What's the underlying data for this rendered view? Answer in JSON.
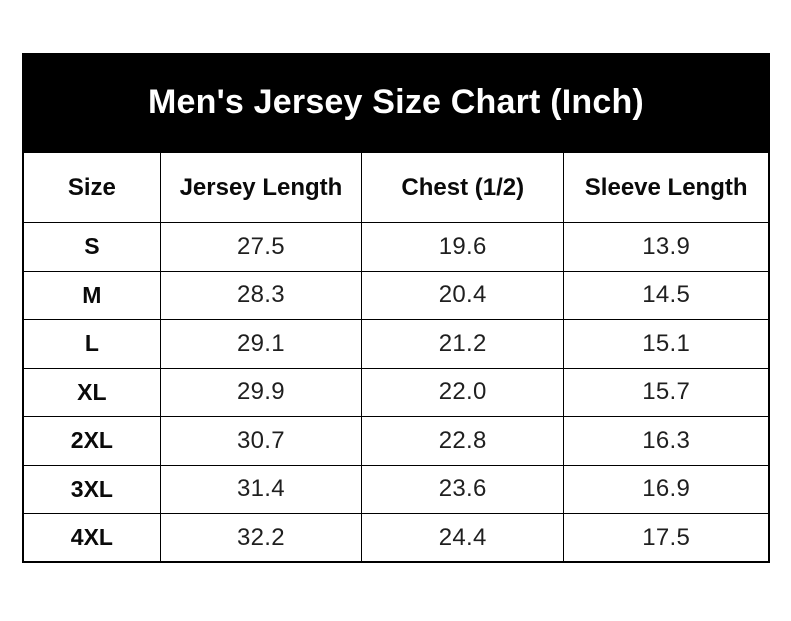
{
  "title": "Men's Jersey Size Chart (Inch)",
  "colors": {
    "banner_bg": "#000000",
    "banner_text": "#ffffff",
    "border": "#000000",
    "cell_bg": "#ffffff",
    "cell_text": "#1f1f1f"
  },
  "chart_data": {
    "type": "table",
    "title": "Men's Jersey Size Chart (Inch)",
    "columns": [
      "Size",
      "Jersey Length",
      "Chest (1/2)",
      "Sleeve Length"
    ],
    "rows": [
      [
        "S",
        "27.5",
        "19.6",
        "13.9"
      ],
      [
        "M",
        "28.3",
        "20.4",
        "14.5"
      ],
      [
        "L",
        "29.1",
        "21.2",
        "15.1"
      ],
      [
        "XL",
        "29.9",
        "22.0",
        "15.7"
      ],
      [
        "2XL",
        "30.7",
        "22.8",
        "16.3"
      ],
      [
        "3XL",
        "31.4",
        "23.6",
        "16.9"
      ],
      [
        "4XL",
        "32.2",
        "24.4",
        "17.5"
      ]
    ]
  }
}
